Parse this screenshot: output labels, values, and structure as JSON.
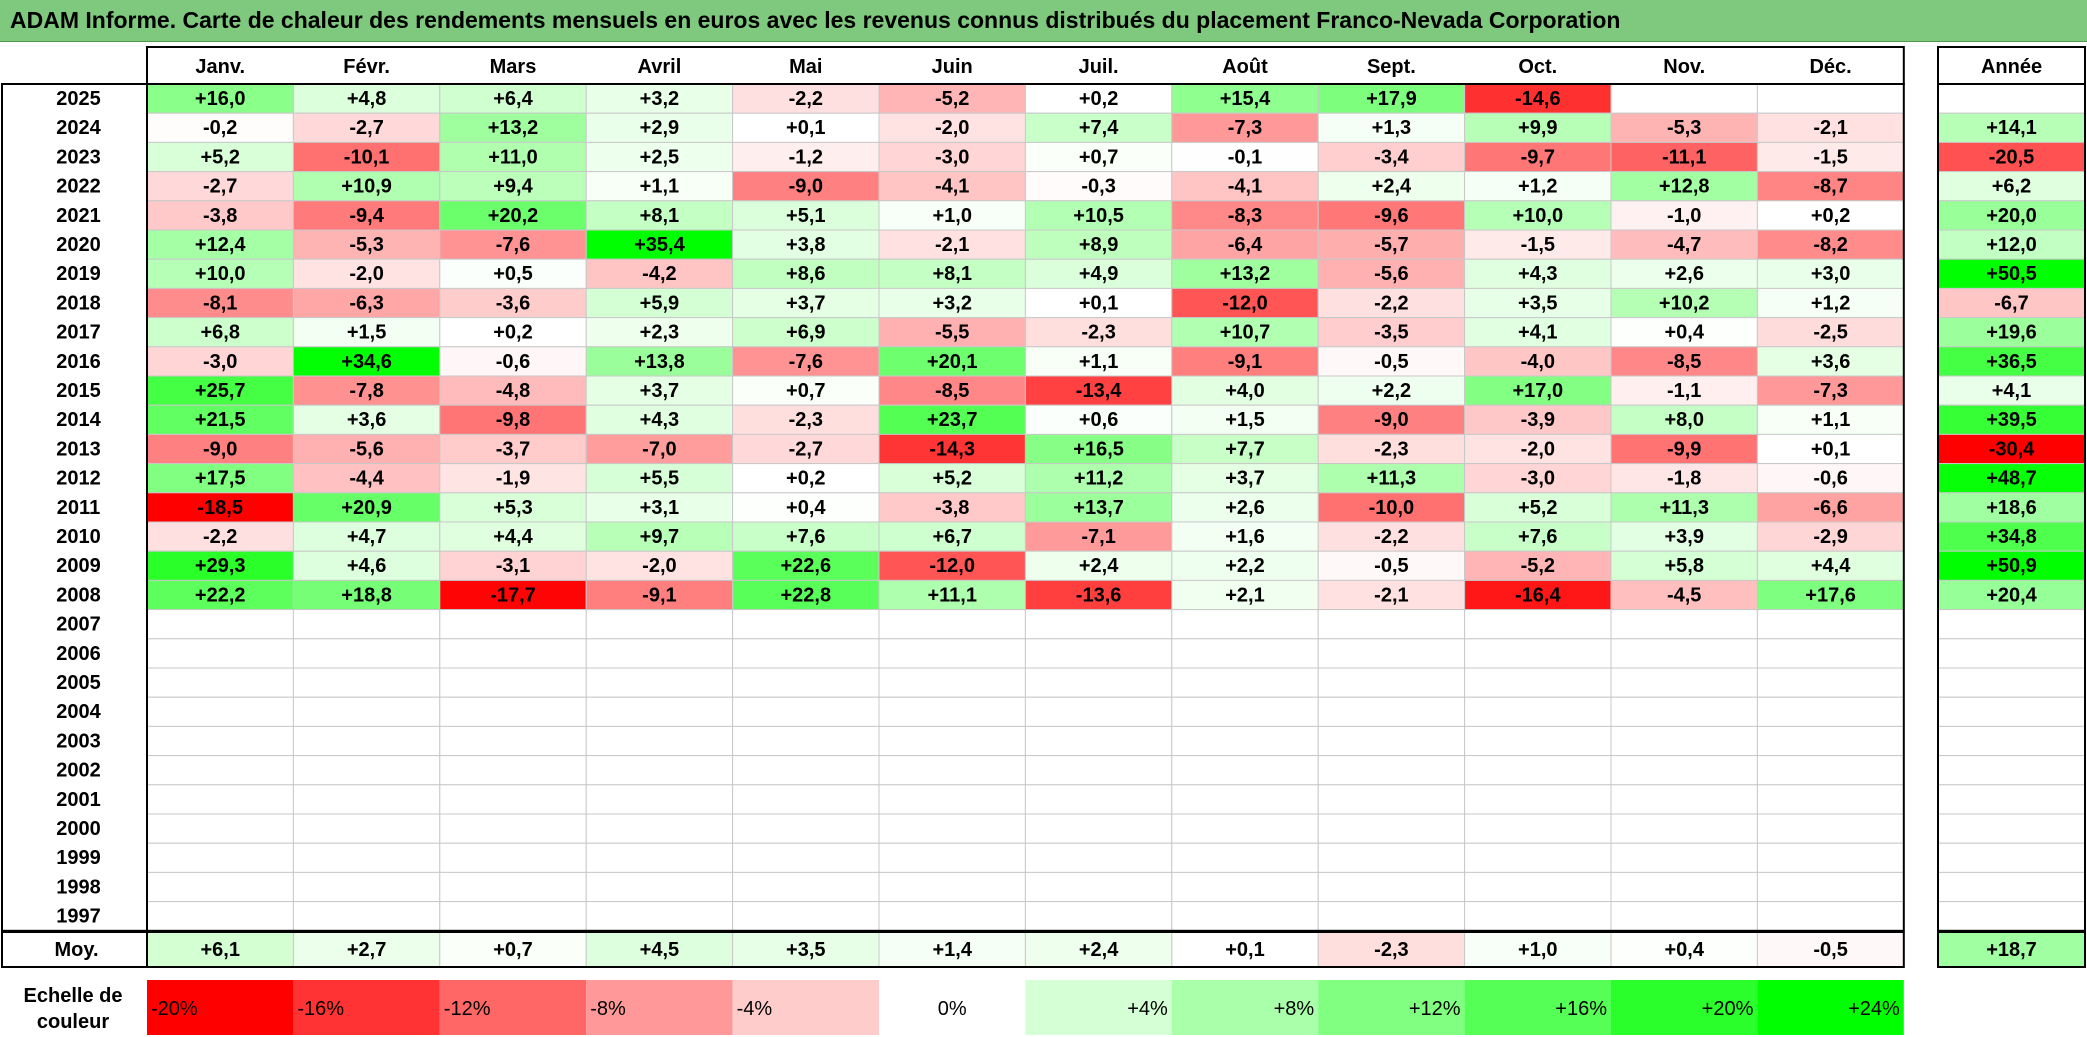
{
  "title": "ADAM Informe. Carte de chaleur des rendements mensuels en euros avec les revenus connus distribués du placement Franco-Nevada Corporation",
  "chart_data": {
    "type": "heatmap",
    "months": [
      "Janv.",
      "Févr.",
      "Mars",
      "Avril",
      "Mai",
      "Juin",
      "Juil.",
      "Août",
      "Sept.",
      "Oct.",
      "Nov.",
      "Déc."
    ],
    "year_header": "Année",
    "rows": [
      {
        "year": "2025",
        "values": [
          "+16,0",
          "+4,8",
          "+6,4",
          "+3,2",
          "-2,2",
          "-5,2",
          "+0,2",
          "+15,4",
          "+17,9",
          "-14,6",
          "",
          ""
        ],
        "annual": ""
      },
      {
        "year": "2024",
        "values": [
          "-0,2",
          "-2,7",
          "+13,2",
          "+2,9",
          "+0,1",
          "-2,0",
          "+7,4",
          "-7,3",
          "+1,3",
          "+9,9",
          "-5,3",
          "-2,1"
        ],
        "annual": "+14,1"
      },
      {
        "year": "2023",
        "values": [
          "+5,2",
          "-10,1",
          "+11,0",
          "+2,5",
          "-1,2",
          "-3,0",
          "+0,7",
          "-0,1",
          "-3,4",
          "-9,7",
          "-11,1",
          "-1,5"
        ],
        "annual": "-20,5"
      },
      {
        "year": "2022",
        "values": [
          "-2,7",
          "+10,9",
          "+9,4",
          "+1,1",
          "-9,0",
          "-4,1",
          "-0,3",
          "-4,1",
          "+2,4",
          "+1,2",
          "+12,8",
          "-8,7"
        ],
        "annual": "+6,2"
      },
      {
        "year": "2021",
        "values": [
          "-3,8",
          "-9,4",
          "+20,2",
          "+8,1",
          "+5,1",
          "+1,0",
          "+10,5",
          "-8,3",
          "-9,6",
          "+10,0",
          "-1,0",
          "+0,2"
        ],
        "annual": "+20,0"
      },
      {
        "year": "2020",
        "values": [
          "+12,4",
          "-5,3",
          "-7,6",
          "+35,4",
          "+3,8",
          "-2,1",
          "+8,9",
          "-6,4",
          "-5,7",
          "-1,5",
          "-4,7",
          "-8,2"
        ],
        "annual": "+12,0"
      },
      {
        "year": "2019",
        "values": [
          "+10,0",
          "-2,0",
          "+0,5",
          "-4,2",
          "+8,6",
          "+8,1",
          "+4,9",
          "+13,2",
          "-5,6",
          "+4,3",
          "+2,6",
          "+3,0"
        ],
        "annual": "+50,5"
      },
      {
        "year": "2018",
        "values": [
          "-8,1",
          "-6,3",
          "-3,6",
          "+5,9",
          "+3,7",
          "+3,2",
          "+0,1",
          "-12,0",
          "-2,2",
          "+3,5",
          "+10,2",
          "+1,2"
        ],
        "annual": "-6,7"
      },
      {
        "year": "2017",
        "values": [
          "+6,8",
          "+1,5",
          "+0,2",
          "+2,3",
          "+6,9",
          "-5,5",
          "-2,3",
          "+10,7",
          "-3,5",
          "+4,1",
          "+0,4",
          "-2,5"
        ],
        "annual": "+19,6"
      },
      {
        "year": "2016",
        "values": [
          "-3,0",
          "+34,6",
          "-0,6",
          "+13,8",
          "-7,6",
          "+20,1",
          "+1,1",
          "-9,1",
          "-0,5",
          "-4,0",
          "-8,5",
          "+3,6"
        ],
        "annual": "+36,5"
      },
      {
        "year": "2015",
        "values": [
          "+25,7",
          "-7,8",
          "-4,8",
          "+3,7",
          "+0,7",
          "-8,5",
          "-13,4",
          "+4,0",
          "+2,2",
          "+17,0",
          "-1,1",
          "-7,3"
        ],
        "annual": "+4,1"
      },
      {
        "year": "2014",
        "values": [
          "+21,5",
          "+3,6",
          "-9,8",
          "+4,3",
          "-2,3",
          "+23,7",
          "+0,6",
          "+1,5",
          "-9,0",
          "-3,9",
          "+8,0",
          "+1,1"
        ],
        "annual": "+39,5"
      },
      {
        "year": "2013",
        "values": [
          "-9,0",
          "-5,6",
          "-3,7",
          "-7,0",
          "-2,7",
          "-14,3",
          "+16,5",
          "+7,7",
          "-2,3",
          "-2,0",
          "-9,9",
          "+0,1"
        ],
        "annual": "-30,4"
      },
      {
        "year": "2012",
        "values": [
          "+17,5",
          "-4,4",
          "-1,9",
          "+5,5",
          "+0,2",
          "+5,2",
          "+11,2",
          "+3,7",
          "+11,3",
          "-3,0",
          "-1,8",
          "-0,6"
        ],
        "annual": "+48,7"
      },
      {
        "year": "2011",
        "values": [
          "-18,5",
          "+20,9",
          "+5,3",
          "+3,1",
          "+0,4",
          "-3,8",
          "+13,7",
          "+2,6",
          "-10,0",
          "+5,2",
          "+11,3",
          "-6,6"
        ],
        "annual": "+18,6"
      },
      {
        "year": "2010",
        "values": [
          "-2,2",
          "+4,7",
          "+4,4",
          "+9,7",
          "+7,6",
          "+6,7",
          "-7,1",
          "+1,6",
          "-2,2",
          "+7,6",
          "+3,9",
          "-2,9"
        ],
        "annual": "+34,8"
      },
      {
        "year": "2009",
        "values": [
          "+29,3",
          "+4,6",
          "-3,1",
          "-2,0",
          "+22,6",
          "-12,0",
          "+2,4",
          "+2,2",
          "-0,5",
          "-5,2",
          "+5,8",
          "+4,4"
        ],
        "annual": "+50,9"
      },
      {
        "year": "2008",
        "values": [
          "+22,2",
          "+18,8",
          "-17,7",
          "-9,1",
          "+22,8",
          "+11,1",
          "-13,6",
          "+2,1",
          "-2,1",
          "-16,4",
          "-4,5",
          "+17,6"
        ],
        "annual": "+20,4"
      },
      {
        "year": "2007",
        "values": [
          "",
          "",
          "",
          "",
          "",
          "",
          "",
          "",
          "",
          "",
          "",
          ""
        ],
        "annual": ""
      },
      {
        "year": "2006",
        "values": [
          "",
          "",
          "",
          "",
          "",
          "",
          "",
          "",
          "",
          "",
          "",
          ""
        ],
        "annual": ""
      },
      {
        "year": "2005",
        "values": [
          "",
          "",
          "",
          "",
          "",
          "",
          "",
          "",
          "",
          "",
          "",
          ""
        ],
        "annual": ""
      },
      {
        "year": "2004",
        "values": [
          "",
          "",
          "",
          "",
          "",
          "",
          "",
          "",
          "",
          "",
          "",
          ""
        ],
        "annual": ""
      },
      {
        "year": "2003",
        "values": [
          "",
          "",
          "",
          "",
          "",
          "",
          "",
          "",
          "",
          "",
          "",
          ""
        ],
        "annual": ""
      },
      {
        "year": "2002",
        "values": [
          "",
          "",
          "",
          "",
          "",
          "",
          "",
          "",
          "",
          "",
          "",
          ""
        ],
        "annual": ""
      },
      {
        "year": "2001",
        "values": [
          "",
          "",
          "",
          "",
          "",
          "",
          "",
          "",
          "",
          "",
          "",
          ""
        ],
        "annual": ""
      },
      {
        "year": "2000",
        "values": [
          "",
          "",
          "",
          "",
          "",
          "",
          "",
          "",
          "",
          "",
          "",
          ""
        ],
        "annual": ""
      },
      {
        "year": "1999",
        "values": [
          "",
          "",
          "",
          "",
          "",
          "",
          "",
          "",
          "",
          "",
          "",
          ""
        ],
        "annual": ""
      },
      {
        "year": "1998",
        "values": [
          "",
          "",
          "",
          "",
          "",
          "",
          "",
          "",
          "",
          "",
          "",
          ""
        ],
        "annual": ""
      },
      {
        "year": "1997",
        "values": [
          "",
          "",
          "",
          "",
          "",
          "",
          "",
          "",
          "",
          "",
          "",
          ""
        ],
        "annual": ""
      }
    ],
    "average": {
      "label": "Moy.",
      "values": [
        "+6,1",
        "+2,7",
        "+0,7",
        "+4,5",
        "+3,5",
        "+1,4",
        "+2,4",
        "+0,1",
        "-2,3",
        "+1,0",
        "+0,4",
        "-0,5"
      ],
      "annual": "+18,7"
    },
    "color_scale": {
      "label_line1": "Echelle de",
      "label_line2": "couleur",
      "stops": [
        "-20%",
        "-16%",
        "-12%",
        "-8%",
        "-4%",
        "0%",
        "+4%",
        "+8%",
        "+12%",
        "+16%",
        "+20%",
        "+24%"
      ],
      "stop_values": [
        -20,
        -16,
        -12,
        -8,
        -4,
        0,
        4,
        8,
        12,
        16,
        20,
        24
      ]
    },
    "colors": {
      "negative_max": "#ff0000",
      "neutral": "#ffffff",
      "positive_max": "#00ff00",
      "title_bar": "#7ec97e"
    }
  }
}
